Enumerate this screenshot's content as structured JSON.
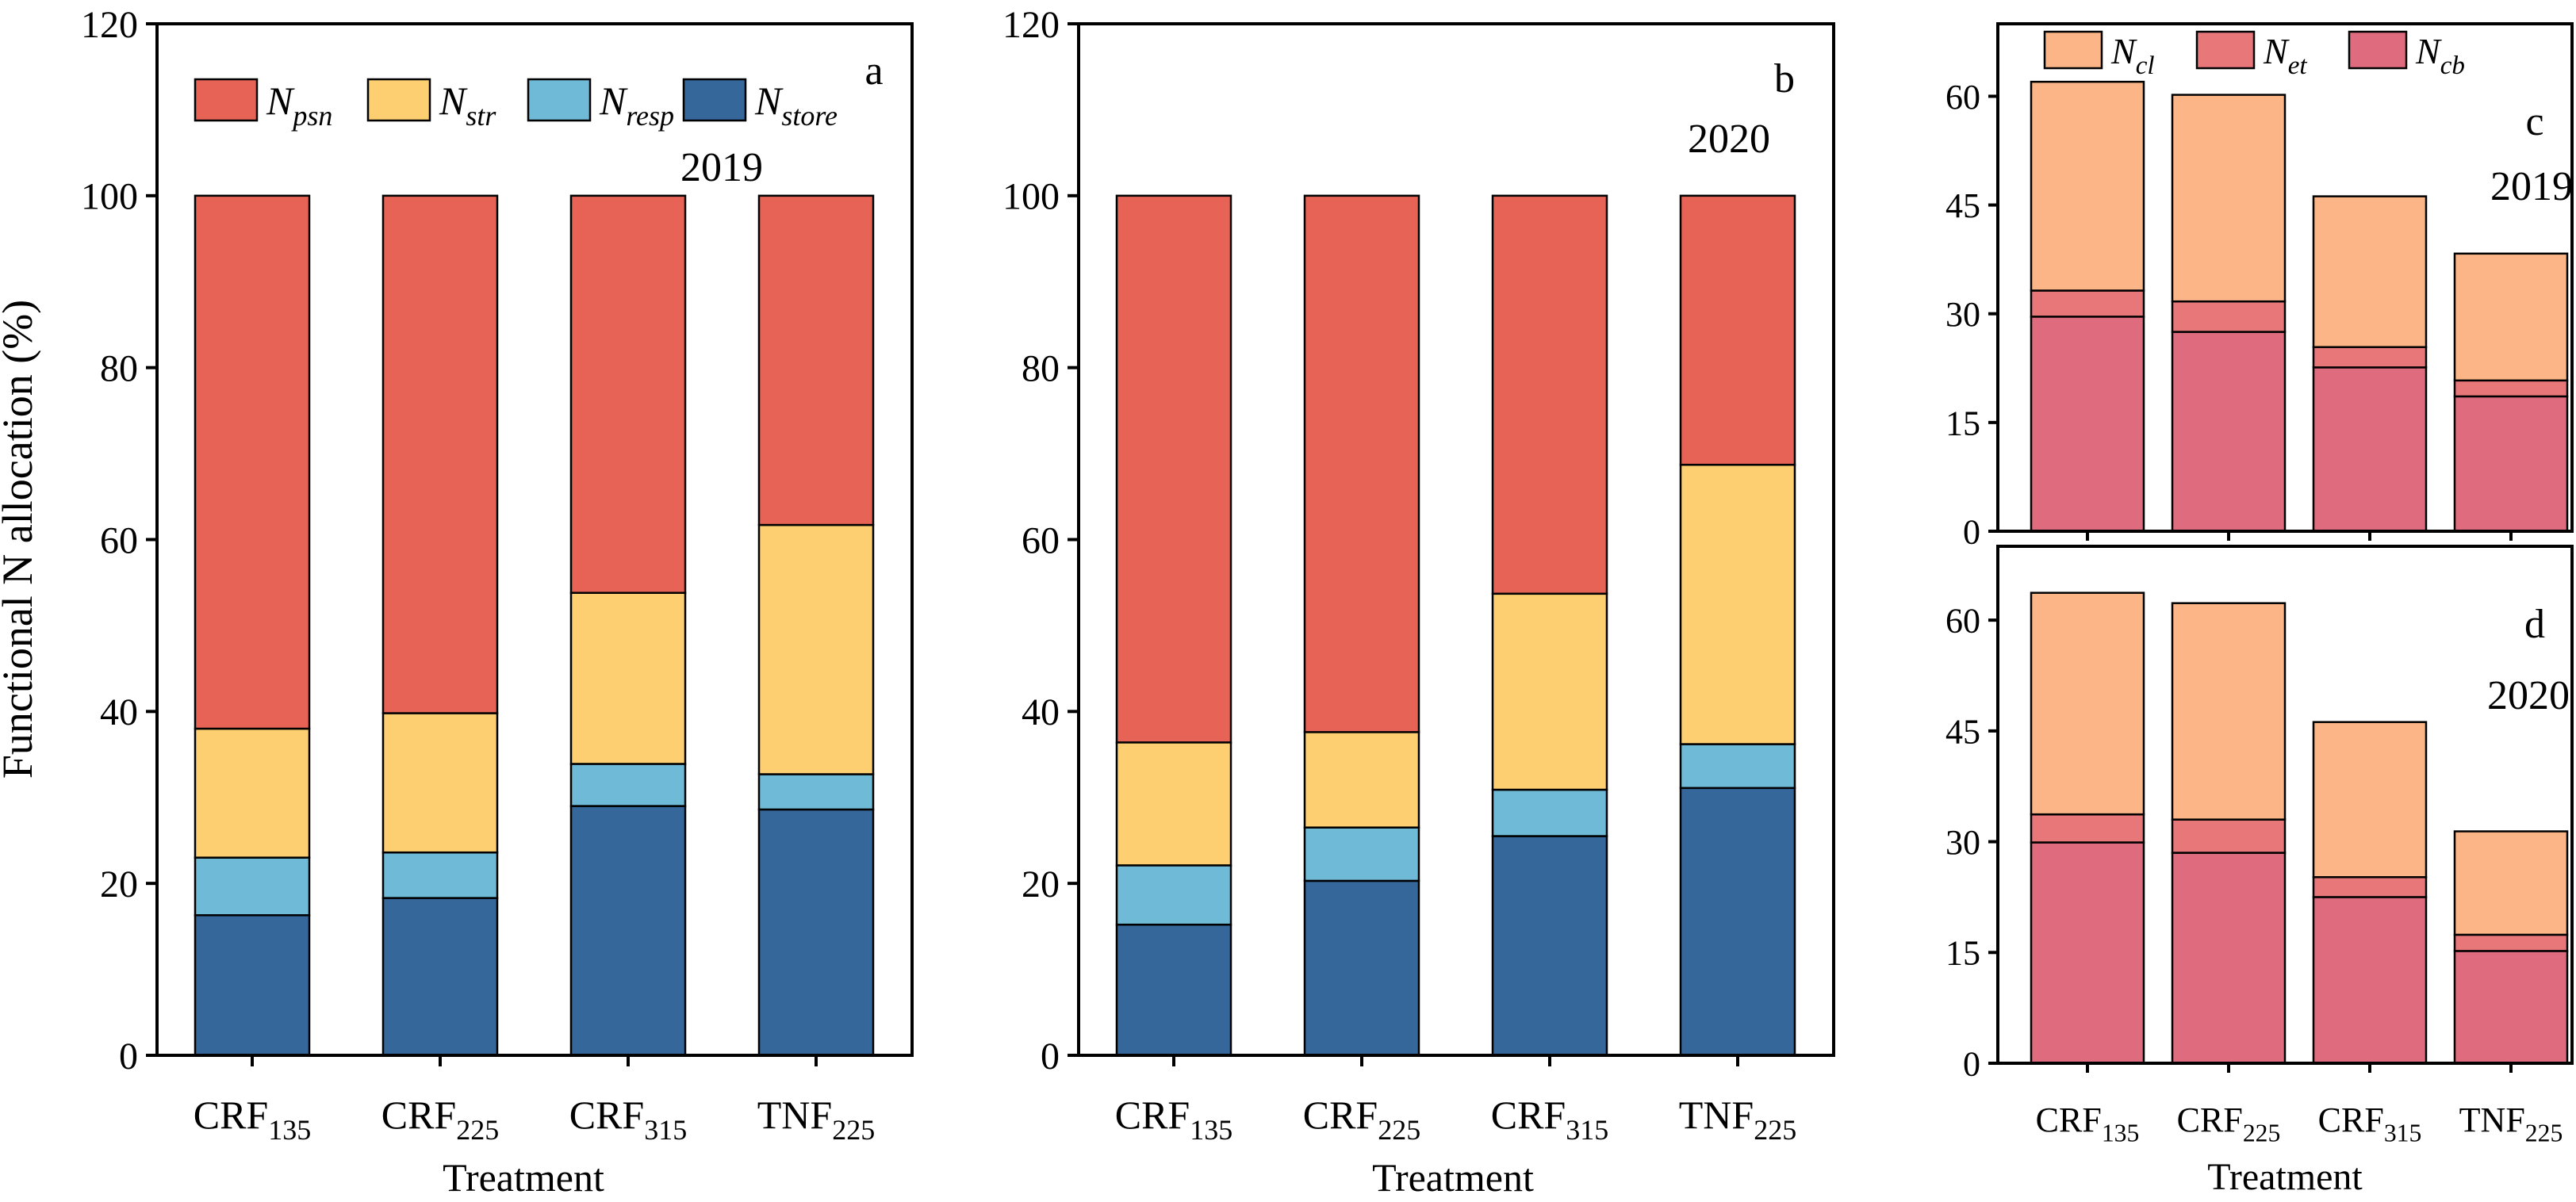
{
  "shared": {
    "xlabel": "Treatment",
    "categories": [
      {
        "base": "CRF",
        "sub": "135"
      },
      {
        "base": "CRF",
        "sub": "225"
      },
      {
        "base": "CRF",
        "sub": "315"
      },
      {
        "base": "TNF",
        "sub": "225"
      }
    ]
  },
  "chart_data": [
    {
      "id": "a",
      "type": "bar",
      "stacked": true,
      "panel_label": "a",
      "year": "2019",
      "ylabel": "Functional N allocation (%)",
      "xlabel": "Treatment",
      "ylim": [
        0,
        120
      ],
      "yticks": [
        "0",
        "20",
        "40",
        "60",
        "80",
        "100",
        "120"
      ],
      "legend": [
        {
          "base": "N",
          "sub": "psn",
          "color": "#E66355"
        },
        {
          "base": "N",
          "sub": "str",
          "color": "#FDCF70"
        },
        {
          "base": "N",
          "sub": "resp",
          "color": "#6FBAD6"
        },
        {
          "base": "N",
          "sub": "store",
          "color": "#36679A"
        }
      ],
      "series": [
        {
          "name": "Nstore",
          "color": "#36679A",
          "values": [
            16.3,
            18.3,
            29.0,
            28.6
          ]
        },
        {
          "name": "Nresp",
          "color": "#6FBAD6",
          "values": [
            6.7,
            5.3,
            4.9,
            4.1
          ]
        },
        {
          "name": "Nstr",
          "color": "#FDCF70",
          "values": [
            15.0,
            16.2,
            19.9,
            29.0
          ]
        },
        {
          "name": "Npsn",
          "color": "#E66355",
          "values": [
            62.0,
            60.2,
            46.2,
            38.3
          ]
        }
      ]
    },
    {
      "id": "b",
      "type": "bar",
      "stacked": true,
      "panel_label": "b",
      "year": "2020",
      "xlabel": "Treatment",
      "ylim": [
        0,
        120
      ],
      "yticks": [
        "0",
        "20",
        "40",
        "60",
        "80",
        "100",
        "120"
      ],
      "series": [
        {
          "name": "Nstore",
          "color": "#36679A",
          "values": [
            15.2,
            20.3,
            25.5,
            31.1
          ]
        },
        {
          "name": "Nresp",
          "color": "#6FBAD6",
          "values": [
            6.9,
            6.2,
            5.4,
            5.1
          ]
        },
        {
          "name": "Nstr",
          "color": "#FDCF70",
          "values": [
            14.3,
            11.1,
            22.8,
            32.5
          ]
        },
        {
          "name": "Npsn",
          "color": "#E66355",
          "values": [
            63.6,
            62.4,
            46.3,
            31.3
          ]
        }
      ]
    },
    {
      "id": "c",
      "type": "bar",
      "stacked": true,
      "panel_label": "c",
      "year": "2019",
      "ylim": [
        0,
        70
      ],
      "yticks": [
        "0",
        "15",
        "30",
        "45",
        "60"
      ],
      "legend": [
        {
          "base": "N",
          "sub": "cl",
          "color": "#FBB586"
        },
        {
          "base": "N",
          "sub": "et",
          "color": "#E8777A"
        },
        {
          "base": "N",
          "sub": "cb",
          "color": "#DE6B7E"
        }
      ],
      "series": [
        {
          "name": "Ncb",
          "color": "#DE6B7E",
          "values": [
            29.6,
            27.5,
            22.6,
            18.6
          ]
        },
        {
          "name": "Net",
          "color": "#E8777A",
          "values": [
            3.6,
            4.2,
            2.8,
            2.2
          ]
        },
        {
          "name": "Ncl",
          "color": "#FBB586",
          "values": [
            28.8,
            28.5,
            20.8,
            17.5
          ]
        }
      ]
    },
    {
      "id": "d",
      "type": "bar",
      "stacked": true,
      "panel_label": "d",
      "year": "2020",
      "xlabel": "Treatment",
      "ylim": [
        0,
        70
      ],
      "yticks": [
        "0",
        "15",
        "30",
        "45",
        "60"
      ],
      "series": [
        {
          "name": "Ncb",
          "color": "#DE6B7E",
          "values": [
            29.9,
            28.5,
            22.5,
            15.2
          ]
        },
        {
          "name": "Net",
          "color": "#E8777A",
          "values": [
            3.8,
            4.5,
            2.7,
            2.2
          ]
        },
        {
          "name": "Ncl",
          "color": "#FBB586",
          "values": [
            30.0,
            29.3,
            21.0,
            14.0
          ]
        }
      ]
    }
  ]
}
